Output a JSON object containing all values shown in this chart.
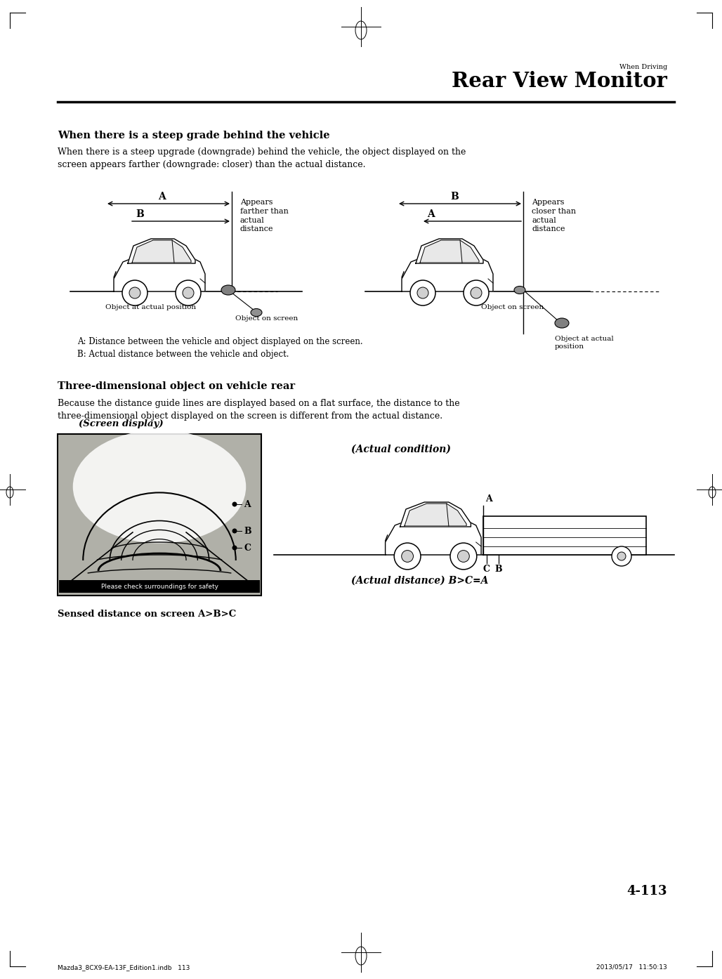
{
  "page_number": "4-113",
  "header_small": "When Driving",
  "header_large": "Rear View Monitor",
  "section1_title": "When there is a steep grade behind the vehicle",
  "section1_body": "When there is a steep upgrade (downgrade) behind the vehicle, the object displayed on the\nscreen appears farther (downgrade: closer) than the actual distance.",
  "section2_title": "Three-dimensional object on vehicle rear",
  "section2_body": "Because the distance guide lines are displayed based on a flat surface, the distance to the\nthree-dimensional object displayed on the screen is different from the actual distance.",
  "label_A_def": "A: Distance between the vehicle and object displayed on the screen.",
  "label_B_def": "B: Actual distance between the vehicle and object.",
  "appears_farther": "Appears\nfarther than\nactual\ndistance",
  "appears_closer": "Appears\ncloser than\nactual\ndistance",
  "object_actual_pos_left": "Object at actual position",
  "object_on_screen_left": "Object on screen",
  "object_on_screen_right": "Object on screen",
  "object_actual_pos_right": "Object at actual\nposition",
  "screen_display_label": "(Screen display)",
  "actual_condition_label": "(Actual condition)",
  "sensed_distance_label": "Sensed distance on screen A>B>C",
  "actual_distance_label": "(Actual distance) B>C=A",
  "footer_left": "Mazda3_8CX9-EA-13F_Edition1.indb   113",
  "footer_right": "2013/05/17   11:50:13",
  "bg_color": "#ffffff"
}
